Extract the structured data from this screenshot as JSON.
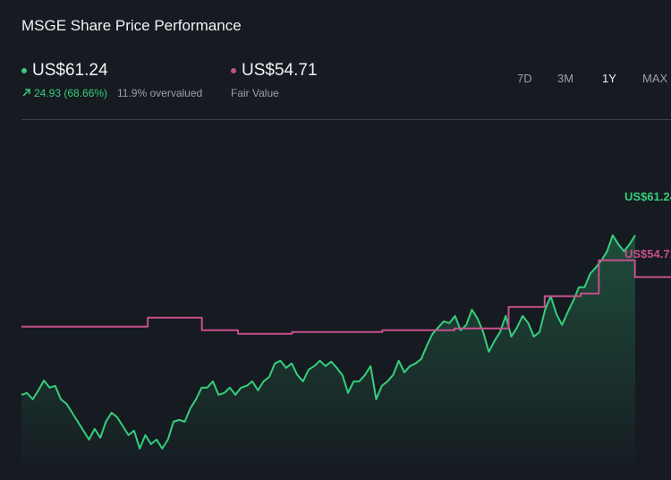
{
  "header": {
    "title": "MSGE Share Price Performance",
    "price": "US$61.24",
    "change": "24.93 (68.66%)",
    "valuation": "11.9% overvalued",
    "fair_value": "US$54.71",
    "fair_value_label": "Fair Value",
    "tabs": [
      "7D",
      "3M",
      "1Y",
      "MAX"
    ],
    "active_tab": 2
  },
  "chart_data": {
    "type": "line",
    "ylim": [
      23,
      78.4
    ],
    "area": true,
    "series": [
      {
        "name": "US$61.24",
        "color": "#35cf7c",
        "values": [
          36.31,
          36.59,
          35.61,
          37.01,
          38.55,
          37.43,
          37.71,
          35.61,
          34.91,
          33.51,
          32.11,
          30.71,
          29.31,
          30.99,
          29.59,
          32.11,
          33.51,
          32.81,
          31.41,
          30.01,
          30.71,
          27.91,
          30.01,
          28.61,
          29.31,
          27.91,
          29.31,
          32.11,
          32.39,
          32.11,
          34.21,
          35.61,
          37.43,
          37.43,
          38.41,
          36.31,
          36.59,
          37.43,
          36.31,
          37.43,
          37.71,
          38.41,
          37.01,
          38.41,
          39.11,
          41.21,
          41.63,
          40.51,
          41.21,
          39.39,
          38.41,
          40.23,
          40.79,
          41.63,
          40.79,
          41.49,
          40.51,
          39.39,
          36.59,
          38.41,
          38.41,
          39.39,
          40.79,
          35.61,
          37.71,
          38.41,
          39.39,
          41.63,
          39.81,
          40.79,
          41.21,
          41.91,
          44.01,
          45.83,
          46.81,
          47.79,
          47.51,
          48.63,
          46.39,
          47.23,
          49.62,
          48.21,
          46.11,
          43.03,
          44.71,
          46.11,
          48.63,
          45.41,
          46.81,
          48.63,
          47.51,
          45.41,
          46.11,
          49.62,
          51.72,
          48.92,
          47.23,
          49.2,
          51.02,
          53.12,
          53.12,
          55.22,
          56.2,
          57.32,
          58.72,
          61.24,
          59.84,
          58.72,
          59.84,
          61.24
        ]
      },
      {
        "name": "US$54.71",
        "color": "#c6508c",
        "step": true,
        "values": [
          46.95,
          46.95,
          46.95,
          46.95,
          46.95,
          46.95,
          46.95,
          48.35,
          48.35,
          48.35,
          46.39,
          46.39,
          45.83,
          45.83,
          45.83,
          46.11,
          46.11,
          46.11,
          46.11,
          46.11,
          46.39,
          46.39,
          46.39,
          46.39,
          46.67,
          46.67,
          46.67,
          50.04,
          50.04,
          51.72,
          51.72,
          52.14,
          57.32,
          57.32,
          54.71,
          54.71,
          54.71
        ]
      }
    ]
  }
}
